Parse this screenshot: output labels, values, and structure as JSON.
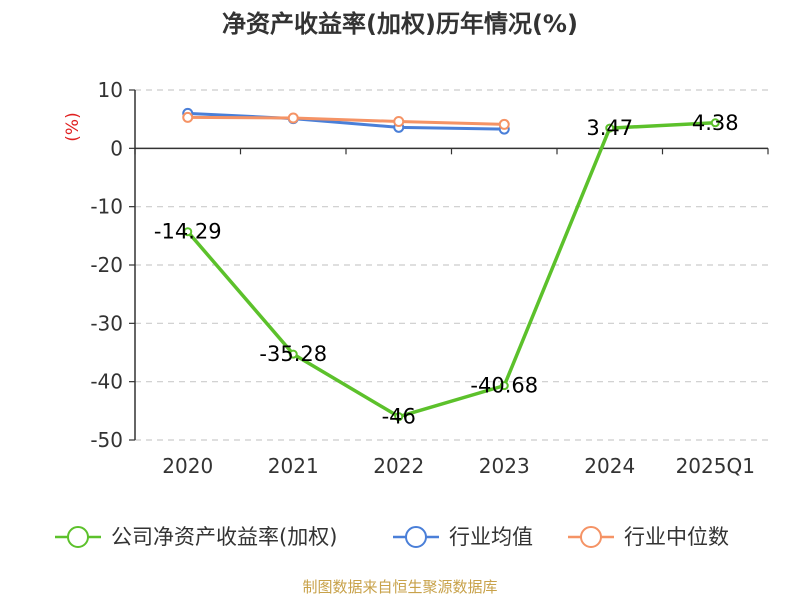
{
  "chart_data": {
    "type": "line",
    "title": "净资产收益率(加权)历年情况(%)",
    "ylabel": "(%)",
    "xlabel": "",
    "ylim": [
      -50,
      10
    ],
    "yticks": [
      10,
      0,
      -10,
      -20,
      -30,
      -40,
      -50
    ],
    "grid": true,
    "legend_position": "bottom",
    "categories": [
      "2020",
      "2021",
      "2022",
      "2023",
      "2024",
      "2025Q1"
    ],
    "series": [
      {
        "name": "公司净资产收益率(加权)",
        "color": "#5cc12b",
        "values": [
          -14.29,
          -35.28,
          -46,
          -40.68,
          3.47,
          4.38
        ],
        "labels": [
          "-14.29",
          "-35.28",
          "-46",
          "-40.68",
          "3.47",
          "4.38"
        ]
      },
      {
        "name": "行业均值",
        "color": "#4a7fd8",
        "values": [
          6.0,
          5.1,
          3.6,
          3.3,
          null,
          null
        ]
      },
      {
        "name": "行业中位数",
        "color": "#f59365",
        "values": [
          5.3,
          5.2,
          4.6,
          4.1,
          null,
          null
        ]
      }
    ]
  },
  "footer": {
    "source": "制图数据来自恒生聚源数据库"
  }
}
